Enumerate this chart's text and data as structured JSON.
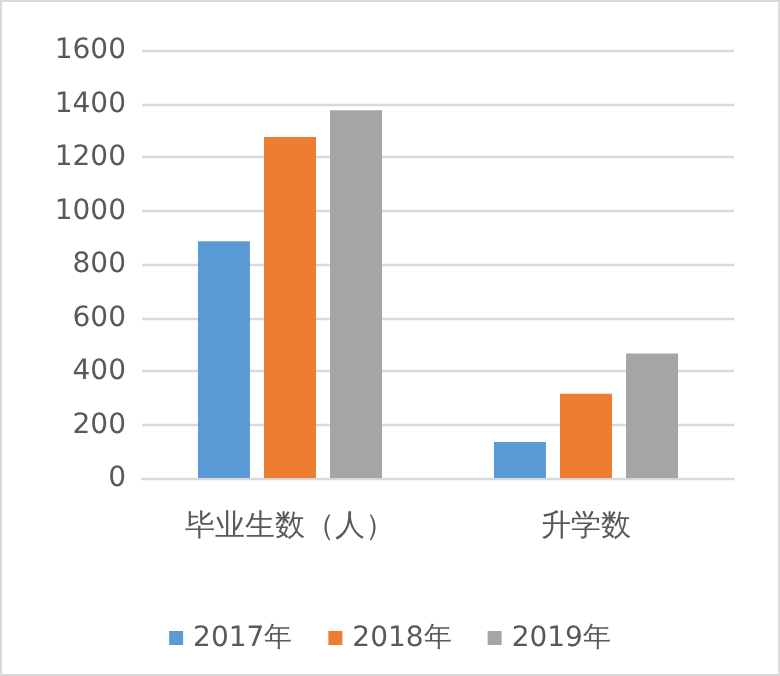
{
  "chart_data": {
    "type": "bar",
    "categories": [
      "毕业生数（人）",
      "升学数"
    ],
    "series": [
      {
        "name": "2017年",
        "color": "#5b9bd5",
        "values": [
          885,
          135
        ]
      },
      {
        "name": "2018年",
        "color": "#ed7d31",
        "values": [
          1275,
          315
        ]
      },
      {
        "name": "2019年",
        "color": "#a5a5a5",
        "values": [
          1375,
          465
        ]
      }
    ],
    "ylim": [
      0,
      1600
    ],
    "yticks": [
      0,
      200,
      400,
      600,
      800,
      1000,
      1200,
      1400,
      1600
    ],
    "grid": "y",
    "legend": "bottom"
  }
}
